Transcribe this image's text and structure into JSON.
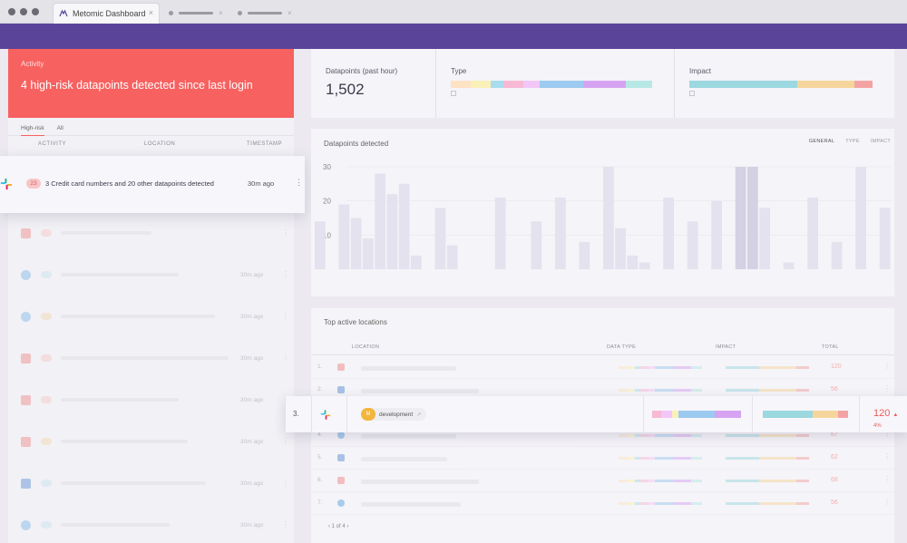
{
  "browser": {
    "tab_title": "Metomic Dashboard",
    "tab_close": "×",
    "ghost_tab_close": "×"
  },
  "activity": {
    "kicker": "Activity",
    "headline": "4 high-risk datapoints detected since last login",
    "filters": [
      "High-risk",
      "All"
    ],
    "columns": [
      "ACTIVITY",
      "LOCATION",
      "TIMESTAMP"
    ],
    "highlight": {
      "count": "23",
      "text": "3 Credit card numbers and 20 other datapoints detected",
      "time": "30m ago",
      "icon": "slack-icon"
    },
    "rows": [
      {
        "icon": "slack-icon",
        "time": "",
        "pill_color": "#f7c6c6"
      },
      {
        "icon": "cloud-icon",
        "time": "30m ago",
        "pill_color": "#c7e3f0"
      },
      {
        "icon": "cloud-icon",
        "time": "30m ago",
        "pill_color": "#f6d8b0"
      },
      {
        "icon": "slack-icon",
        "time": "30m ago",
        "pill_color": "#f7c6c6"
      },
      {
        "icon": "slack-icon",
        "time": "30m ago",
        "pill_color": "#f7c6c6"
      },
      {
        "icon": "slack-icon",
        "time": "30m ago",
        "pill_color": "#f6d8b0"
      },
      {
        "icon": "trello-icon",
        "time": "30m ago",
        "pill_color": "#c7e3f0"
      },
      {
        "icon": "cloud-icon",
        "time": "30m ago",
        "pill_color": "#c7e3f0"
      }
    ]
  },
  "stats": {
    "datapoints_label": "Datapoints (past hour)",
    "datapoints_value": "1,502",
    "type_label": "Type",
    "impact_label": "Impact"
  },
  "chart": {
    "title": "Datapoints detected",
    "tabs": [
      "GENERAL",
      "TYPE",
      "IMPACT"
    ]
  },
  "chart_data": {
    "type": "bar",
    "title": "Datapoints detected",
    "ylabel": "",
    "xlabel": "",
    "ylim": [
      0,
      30
    ],
    "yticks": [
      "30",
      "20",
      "10"
    ],
    "values": [
      14,
      0,
      19,
      15,
      9,
      28,
      22,
      25,
      4,
      0,
      18,
      7,
      0,
      0,
      0,
      21,
      0,
      0,
      14,
      0,
      21,
      0,
      8,
      0,
      30,
      12,
      4,
      2,
      0,
      21,
      0,
      14,
      0,
      20,
      0,
      30,
      30,
      18,
      0,
      2,
      0,
      21,
      0,
      8,
      0,
      30,
      0,
      18
    ]
  },
  "locations": {
    "title": "Top active locations",
    "columns": [
      "LOCATION",
      "DATA TYPE",
      "IMPACT",
      "TOTAL"
    ],
    "rows": [
      {
        "num": "1.",
        "icon": "slack-icon",
        "total": "120"
      },
      {
        "num": "2.",
        "icon": "trello-icon",
        "total": "56"
      },
      {
        "num": "3.",
        "icon": "slack-icon",
        "total": "120"
      },
      {
        "num": "4.",
        "icon": "cloud-icon",
        "total": "67"
      },
      {
        "num": "5.",
        "icon": "trello-icon",
        "total": "62"
      },
      {
        "num": "6.",
        "icon": "slack-icon",
        "total": "68"
      },
      {
        "num": "7.",
        "icon": "cloud-icon",
        "total": "56"
      }
    ],
    "highlight": {
      "num": "3.",
      "badge": "M",
      "label": "development",
      "total": "120",
      "trend": "▲ 4%"
    },
    "pager": "1 of 4"
  },
  "colors": {
    "banner": "#5a449a",
    "alert": "#f76160",
    "type_palette": [
      "#fde3c4",
      "#fbf0b8",
      "#a9dcef",
      "#f7b9d3",
      "#f2c7f7",
      "#9ccaf0",
      "#d6a3f2",
      "#b7e8e5"
    ],
    "impact_palette": [
      "#9cd8e0",
      "#f6d59c",
      "#f4a3a5"
    ]
  }
}
